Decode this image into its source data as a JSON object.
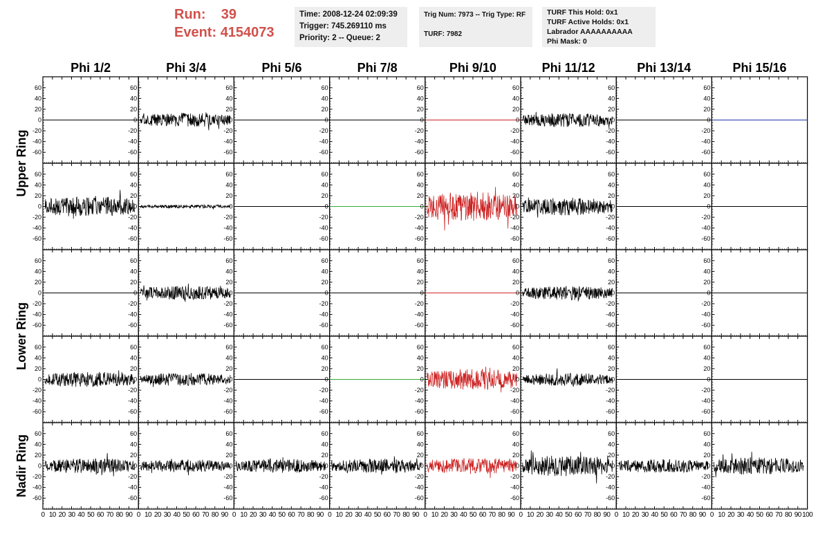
{
  "header": {
    "run_label": "Run:",
    "run_value": "39",
    "event_label": "Event:",
    "event_value": "4154073",
    "time_line": "Time: 2008-12-24 02:09:39",
    "trigger_line": "Trigger: 745.269110 ms",
    "priority_line": "Priority: 2 -- Queue: 2",
    "trig_line": "Trig Num: 7973 -- Trig Type: RF",
    "turf_line": "TURF: 7982",
    "turf_hold_line": "TURF This Hold: 0x1",
    "turf_active_line": "TURF Active Holds: 0x1",
    "labrador_line": "Labrador AAAAAAAAAA",
    "phi_mask_line": "Phi Mask: 0"
  },
  "chart_data": {
    "type": "line",
    "columns": [
      "Phi 1/2",
      "Phi 3/4",
      "Phi 5/6",
      "Phi 7/8",
      "Phi 9/10",
      "Phi 11/12",
      "Phi 13/14",
      "Phi 15/16"
    ],
    "ring_labels": [
      {
        "name": "Upper Ring",
        "rows": [
          0,
          1
        ]
      },
      {
        "name": "Lower Ring",
        "rows": [
          2,
          3
        ]
      },
      {
        "name": "Nadir Ring",
        "rows": [
          4
        ]
      }
    ],
    "ylim": [
      -70,
      70
    ],
    "yticks": [
      -60,
      -40,
      -20,
      0,
      20,
      40,
      60
    ],
    "xlim": [
      0,
      100
    ],
    "xticks": [
      0,
      10,
      20,
      30,
      40,
      50,
      60,
      70,
      80,
      90,
      100
    ],
    "colors": {
      "black": "#000000",
      "red": "#cc2222",
      "green": "#33aa33",
      "blue": "#2233aa",
      "title_red": "#d1504b"
    },
    "channels": [
      [
        {
          "amp": 0,
          "color": "black"
        },
        {
          "amp": 12,
          "color": "black"
        },
        {
          "amp": 0,
          "color": "black"
        },
        {
          "amp": 0,
          "color": "black"
        },
        {
          "amp": 0,
          "color": "red"
        },
        {
          "amp": 12,
          "color": "black"
        },
        {
          "amp": 0,
          "color": "black"
        },
        {
          "amp": 0,
          "color": "blue"
        }
      ],
      [
        {
          "amp": 18,
          "color": "black"
        },
        {
          "amp": 3,
          "color": "black"
        },
        {
          "amp": 0,
          "color": "black"
        },
        {
          "amp": 0,
          "color": "green"
        },
        {
          "amp": 26,
          "color": "red"
        },
        {
          "amp": 15,
          "color": "black"
        },
        {
          "amp": 0,
          "color": "black"
        },
        {
          "amp": 0,
          "color": "black"
        }
      ],
      [
        {
          "amp": 0,
          "color": "black"
        },
        {
          "amp": 12,
          "color": "black"
        },
        {
          "amp": 0,
          "color": "black"
        },
        {
          "amp": 0,
          "color": "black"
        },
        {
          "amp": 0,
          "color": "red"
        },
        {
          "amp": 12,
          "color": "black"
        },
        {
          "amp": 0,
          "color": "black"
        },
        {
          "amp": 0,
          "color": "black"
        }
      ],
      [
        {
          "amp": 13,
          "color": "black"
        },
        {
          "amp": 11,
          "color": "black"
        },
        {
          "amp": 0,
          "color": "black"
        },
        {
          "amp": 0,
          "color": "green"
        },
        {
          "amp": 18,
          "color": "red"
        },
        {
          "amp": 11,
          "color": "black"
        },
        {
          "amp": 0,
          "color": "black"
        },
        {
          "amp": 0,
          "color": "black"
        }
      ],
      [
        {
          "amp": 13,
          "color": "black"
        },
        {
          "amp": 11,
          "color": "black"
        },
        {
          "amp": 12,
          "color": "black"
        },
        {
          "amp": 12,
          "color": "black"
        },
        {
          "amp": 14,
          "color": "red"
        },
        {
          "amp": 18,
          "color": "black"
        },
        {
          "amp": 12,
          "color": "black"
        },
        {
          "amp": 15,
          "color": "black"
        }
      ]
    ]
  }
}
